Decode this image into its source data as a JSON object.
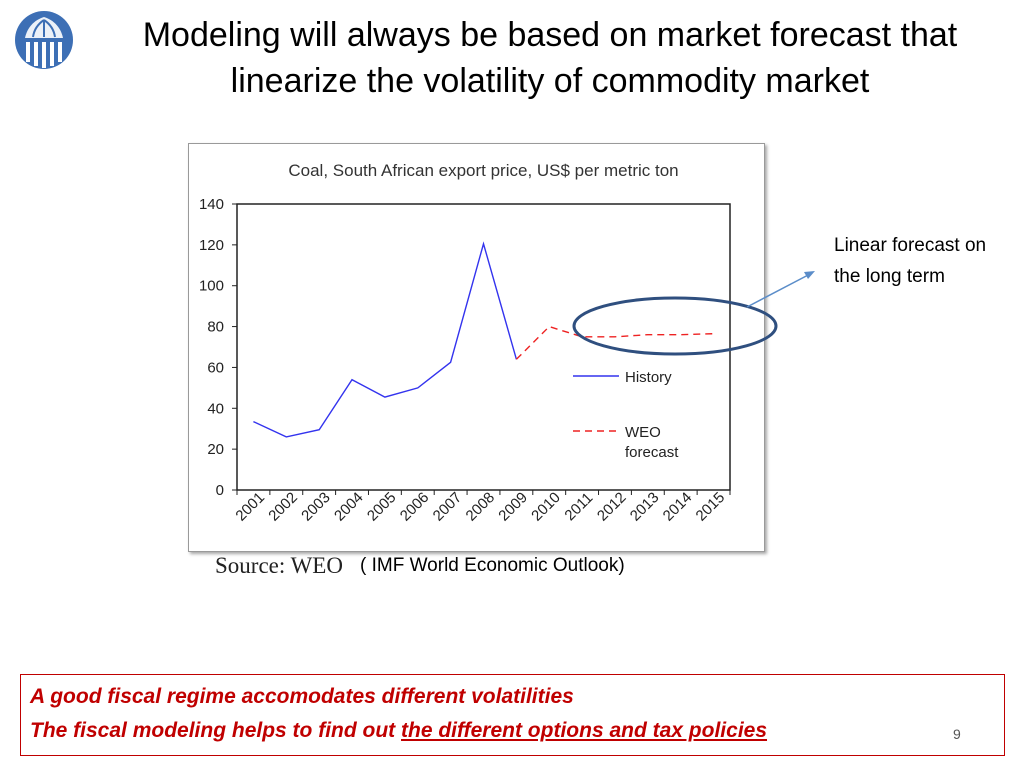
{
  "slide": {
    "title_line1": "Modeling will always be based on market forecast that",
    "title_line2": "linearize the volatility of commodity market",
    "source_label": "Source: WEO",
    "source_note": "( IMF World Economic Outlook)",
    "annotation": "Linear forecast on the long term",
    "conclusion_line1": "A good fiscal regime accomodates different volatilities",
    "conclusion_line2_prefix": "The fiscal modeling helps to find out ",
    "conclusion_line2_underlined": "the different options and tax policies",
    "page_number": "9",
    "colors": {
      "conclusion": "#c00000",
      "ellipse": "#2f4f7f",
      "arrow": "#5b8dc9",
      "logo": "#3d6fb5"
    }
  },
  "chart_data": {
    "type": "line",
    "title": "Coal, South African export price, US$ per metric ton",
    "xlabel": "",
    "ylabel": "",
    "categories": [
      "2001",
      "2002",
      "2003",
      "2004",
      "2005",
      "2006",
      "2007",
      "2008",
      "2009",
      "2010",
      "2011",
      "2012",
      "2013",
      "2014",
      "2015"
    ],
    "ylim": [
      0,
      140
    ],
    "yticks": [
      0,
      20,
      40,
      60,
      80,
      100,
      120,
      140
    ],
    "grid": false,
    "legend_position": "inside-right",
    "series": [
      {
        "name": "History",
        "style": "solid",
        "color": "#3333ee",
        "values": [
          33.5,
          26,
          29.5,
          54,
          45.5,
          50,
          62.5,
          120.5,
          64,
          null,
          null,
          null,
          null,
          null,
          null
        ]
      },
      {
        "name": "WEO forecast",
        "style": "dashed",
        "color": "#ee2222",
        "values": [
          null,
          null,
          null,
          null,
          null,
          null,
          null,
          null,
          64,
          80,
          75,
          75,
          76,
          76,
          76.5
        ]
      }
    ]
  }
}
